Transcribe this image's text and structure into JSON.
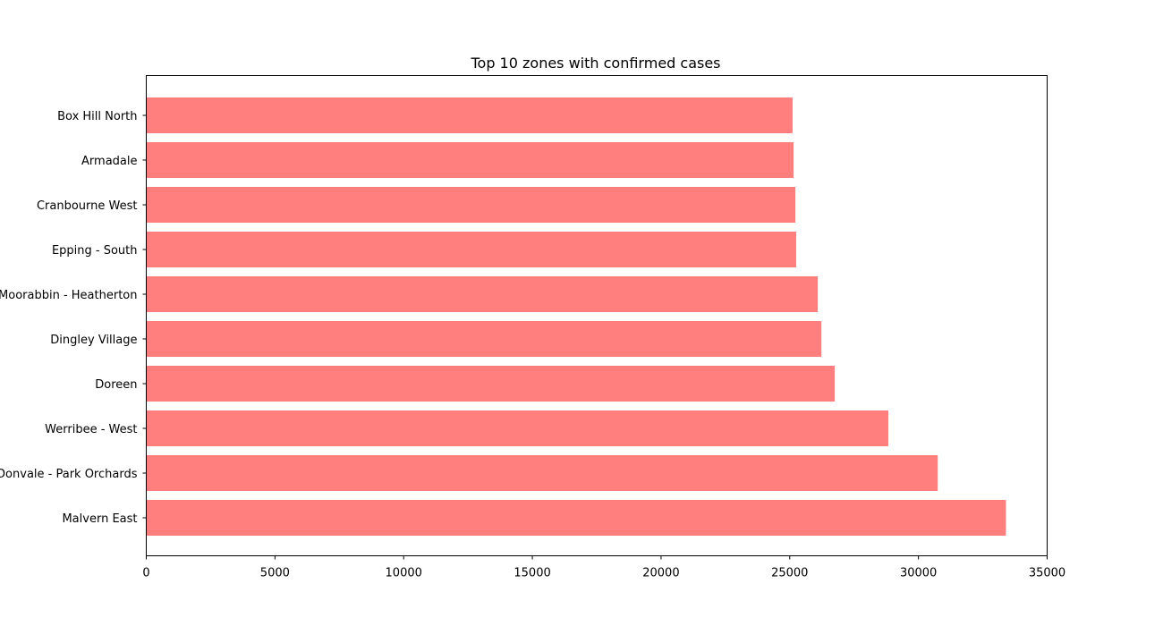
{
  "chart_data": {
    "type": "bar",
    "orientation": "horizontal",
    "title": "Top 10 zones with confirmed cases",
    "xlabel": "",
    "ylabel": "",
    "categories": [
      "Malvern East",
      "Donvale - Park Orchards",
      "Werribee - West",
      "Doreen",
      "Dingley Village",
      "Moorabbin - Heatherton",
      "Epping - South",
      "Cranbourne West",
      "Armadale",
      "Box Hill North"
    ],
    "values": [
      33400,
      30750,
      28830,
      26750,
      26230,
      26090,
      25250,
      25220,
      25150,
      25110
    ],
    "xlim": [
      0,
      35000
    ],
    "xticks": [
      0,
      5000,
      10000,
      15000,
      20000,
      25000,
      30000,
      35000
    ],
    "grid": false,
    "colors": {
      "bar": "#ff7f7f",
      "axis": "#000000"
    }
  }
}
